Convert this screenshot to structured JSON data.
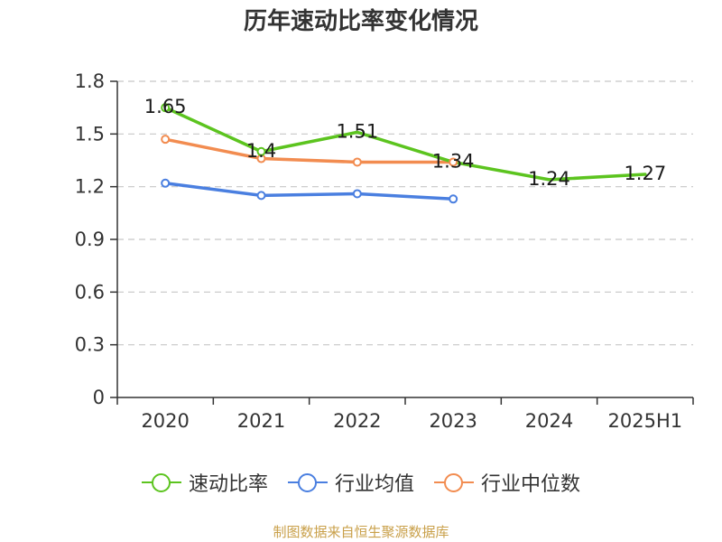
{
  "chart_data": {
    "type": "line",
    "title": "历年速动比率变化情况",
    "categories": [
      "2020",
      "2021",
      "2022",
      "2023",
      "2024",
      "2025H1"
    ],
    "ylim": [
      0,
      1.8
    ],
    "yticks": [
      "0",
      "0.3",
      "0.6",
      "0.9",
      "1.2",
      "1.5",
      "1.8"
    ],
    "grid": true,
    "legend_position": "bottom",
    "series": [
      {
        "name": "速动比率",
        "color": "#5cc41f",
        "values": [
          1.65,
          1.4,
          1.51,
          1.34,
          1.24,
          1.27
        ],
        "data_labels": [
          "1.65",
          "1.4",
          "1.51",
          "1.34",
          "1.24",
          "1.27"
        ],
        "markers": [
          true,
          true,
          false,
          false,
          false,
          false
        ]
      },
      {
        "name": "行业均值",
        "color": "#4a7fe0",
        "values": [
          1.22,
          1.15,
          1.16,
          1.13,
          null,
          null
        ],
        "markers": [
          true,
          true,
          true,
          true,
          false,
          false
        ]
      },
      {
        "name": "行业中位数",
        "color": "#f28c50",
        "values": [
          1.47,
          1.36,
          1.34,
          1.34,
          null,
          null
        ],
        "markers": [
          true,
          true,
          true,
          true,
          false,
          false
        ]
      }
    ]
  },
  "footer": {
    "source": "制图数据来自恒生聚源数据库"
  }
}
